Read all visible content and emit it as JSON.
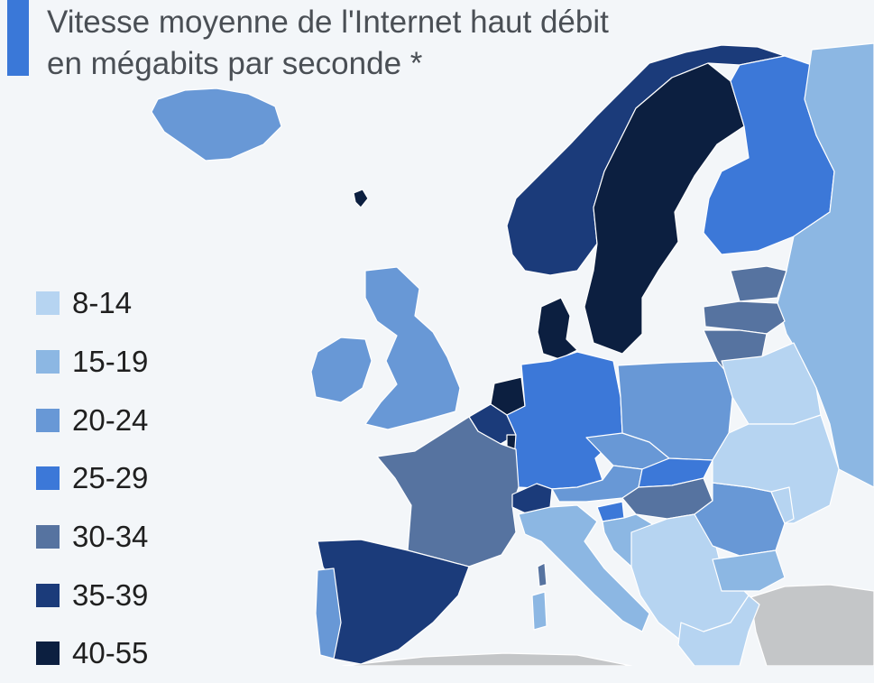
{
  "title": {
    "line1": "Vitesse moyenne de l'Internet haut débit",
    "line2": "en mégabits par seconde *"
  },
  "legend": [
    {
      "label": "8-14",
      "color": "#b6d4f1"
    },
    {
      "label": "15-19",
      "color": "#8cb7e3"
    },
    {
      "label": "20-24",
      "color": "#6898d6"
    },
    {
      "label": "25-29",
      "color": "#3c78d8"
    },
    {
      "label": "30-34",
      "color": "#5673a0"
    },
    {
      "label": "35-39",
      "color": "#1b3b7a"
    },
    {
      "label": "40-55",
      "color": "#0c1f40"
    }
  ],
  "colors": {
    "sea": "#f3f6f9",
    "no_data": "#c4c6c8",
    "border": "#ffffff",
    "title_accent": "#3a78d8"
  },
  "countries": [
    {
      "id": "iceland",
      "bin": 2
    },
    {
      "id": "faroe",
      "bin": 6
    },
    {
      "id": "norway",
      "bin": 5
    },
    {
      "id": "sweden",
      "bin": 6
    },
    {
      "id": "finland",
      "bin": 3
    },
    {
      "id": "russia",
      "bin": 1
    },
    {
      "id": "ireland",
      "bin": 2
    },
    {
      "id": "united-kingdom",
      "bin": 2
    },
    {
      "id": "denmark",
      "bin": 6
    },
    {
      "id": "netherlands",
      "bin": 6
    },
    {
      "id": "belgium",
      "bin": 5
    },
    {
      "id": "luxembourg",
      "bin": 6
    },
    {
      "id": "germany",
      "bin": 3
    },
    {
      "id": "france",
      "bin": 4
    },
    {
      "id": "switzerland",
      "bin": 5
    },
    {
      "id": "spain",
      "bin": 5
    },
    {
      "id": "portugal",
      "bin": 2
    },
    {
      "id": "italy",
      "bin": 1
    },
    {
      "id": "sardinia",
      "bin": 1
    },
    {
      "id": "corsica",
      "bin": 4
    },
    {
      "id": "austria",
      "bin": 2
    },
    {
      "id": "czechia",
      "bin": 2
    },
    {
      "id": "poland",
      "bin": 2
    },
    {
      "id": "slovakia",
      "bin": 3
    },
    {
      "id": "hungary",
      "bin": 4
    },
    {
      "id": "slovenia",
      "bin": 3
    },
    {
      "id": "croatia",
      "bin": 1
    },
    {
      "id": "balkans",
      "bin": 0
    },
    {
      "id": "romania",
      "bin": 2
    },
    {
      "id": "bulgaria",
      "bin": 1
    },
    {
      "id": "greece",
      "bin": 0
    },
    {
      "id": "estonia",
      "bin": 4
    },
    {
      "id": "latvia",
      "bin": 4
    },
    {
      "id": "lithuania",
      "bin": 4
    },
    {
      "id": "belarus",
      "bin": 0
    },
    {
      "id": "ukraine",
      "bin": 0
    },
    {
      "id": "moldova",
      "bin": 0
    },
    {
      "id": "turkey",
      "bin": -1
    },
    {
      "id": "north-africa",
      "bin": -1
    }
  ]
}
